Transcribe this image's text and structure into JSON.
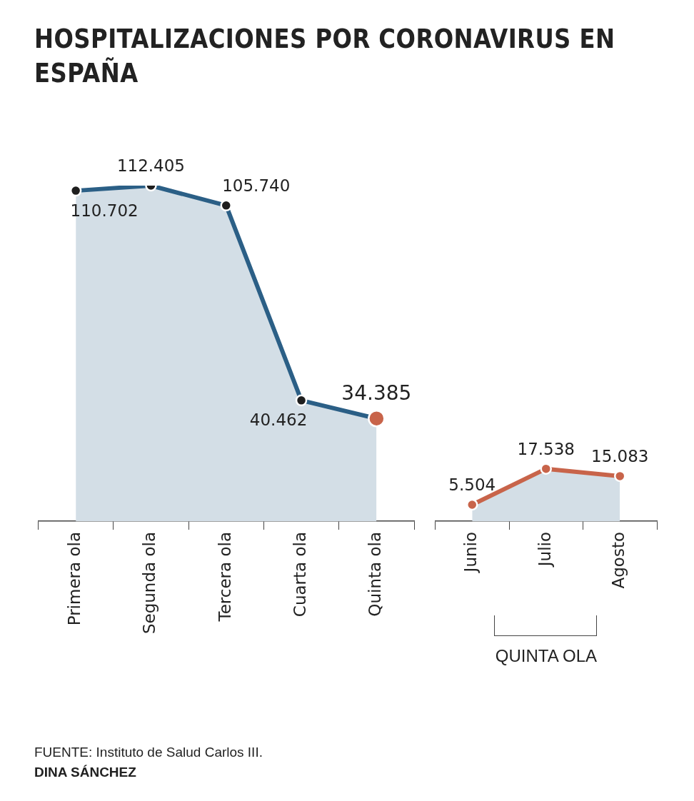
{
  "chart_data": [
    {
      "type": "area",
      "title": "HOSPITALIZACIONES POR CORONAVIRUS EN ESPAÑA",
      "categories": [
        "Primera ola",
        "Segunda ola",
        "Tercera ola",
        "Cuarta ola",
        "Quinta ola"
      ],
      "series": [
        {
          "color": "#2b5f86",
          "colors": [
            "#1e1e1e",
            "#1e1e1e",
            "#1e1e1e",
            "#1e1e1e",
            "#c8644a"
          ],
          "values": [
            110702,
            112405,
            105740,
            40462,
            34385
          ],
          "value_labels": [
            "110.702",
            "112.405",
            "105.740",
            "40.462",
            "34.385"
          ]
        }
      ],
      "tick_labels": "x",
      "legend": false,
      "marker": "circle",
      "annotations": [
        "FUENTE: Instituto de Salud Carlos III.",
        "DINA SÁNCHEZ"
      ]
    },
    {
      "type": "area",
      "xlabel": "QUINTA OLA",
      "categories": [
        "Junio",
        "Julio",
        "Agosto"
      ],
      "series": [
        {
          "color": "#c8644a",
          "colors": [
            "#c8644a",
            "#c8644a",
            "#c8644a"
          ],
          "values": [
            5504,
            17538,
            15083
          ],
          "value_labels": [
            "5.504",
            "17.538",
            "15.083"
          ]
        }
      ],
      "tick_labels": "x",
      "legend": false,
      "marker": "circle"
    }
  ]
}
